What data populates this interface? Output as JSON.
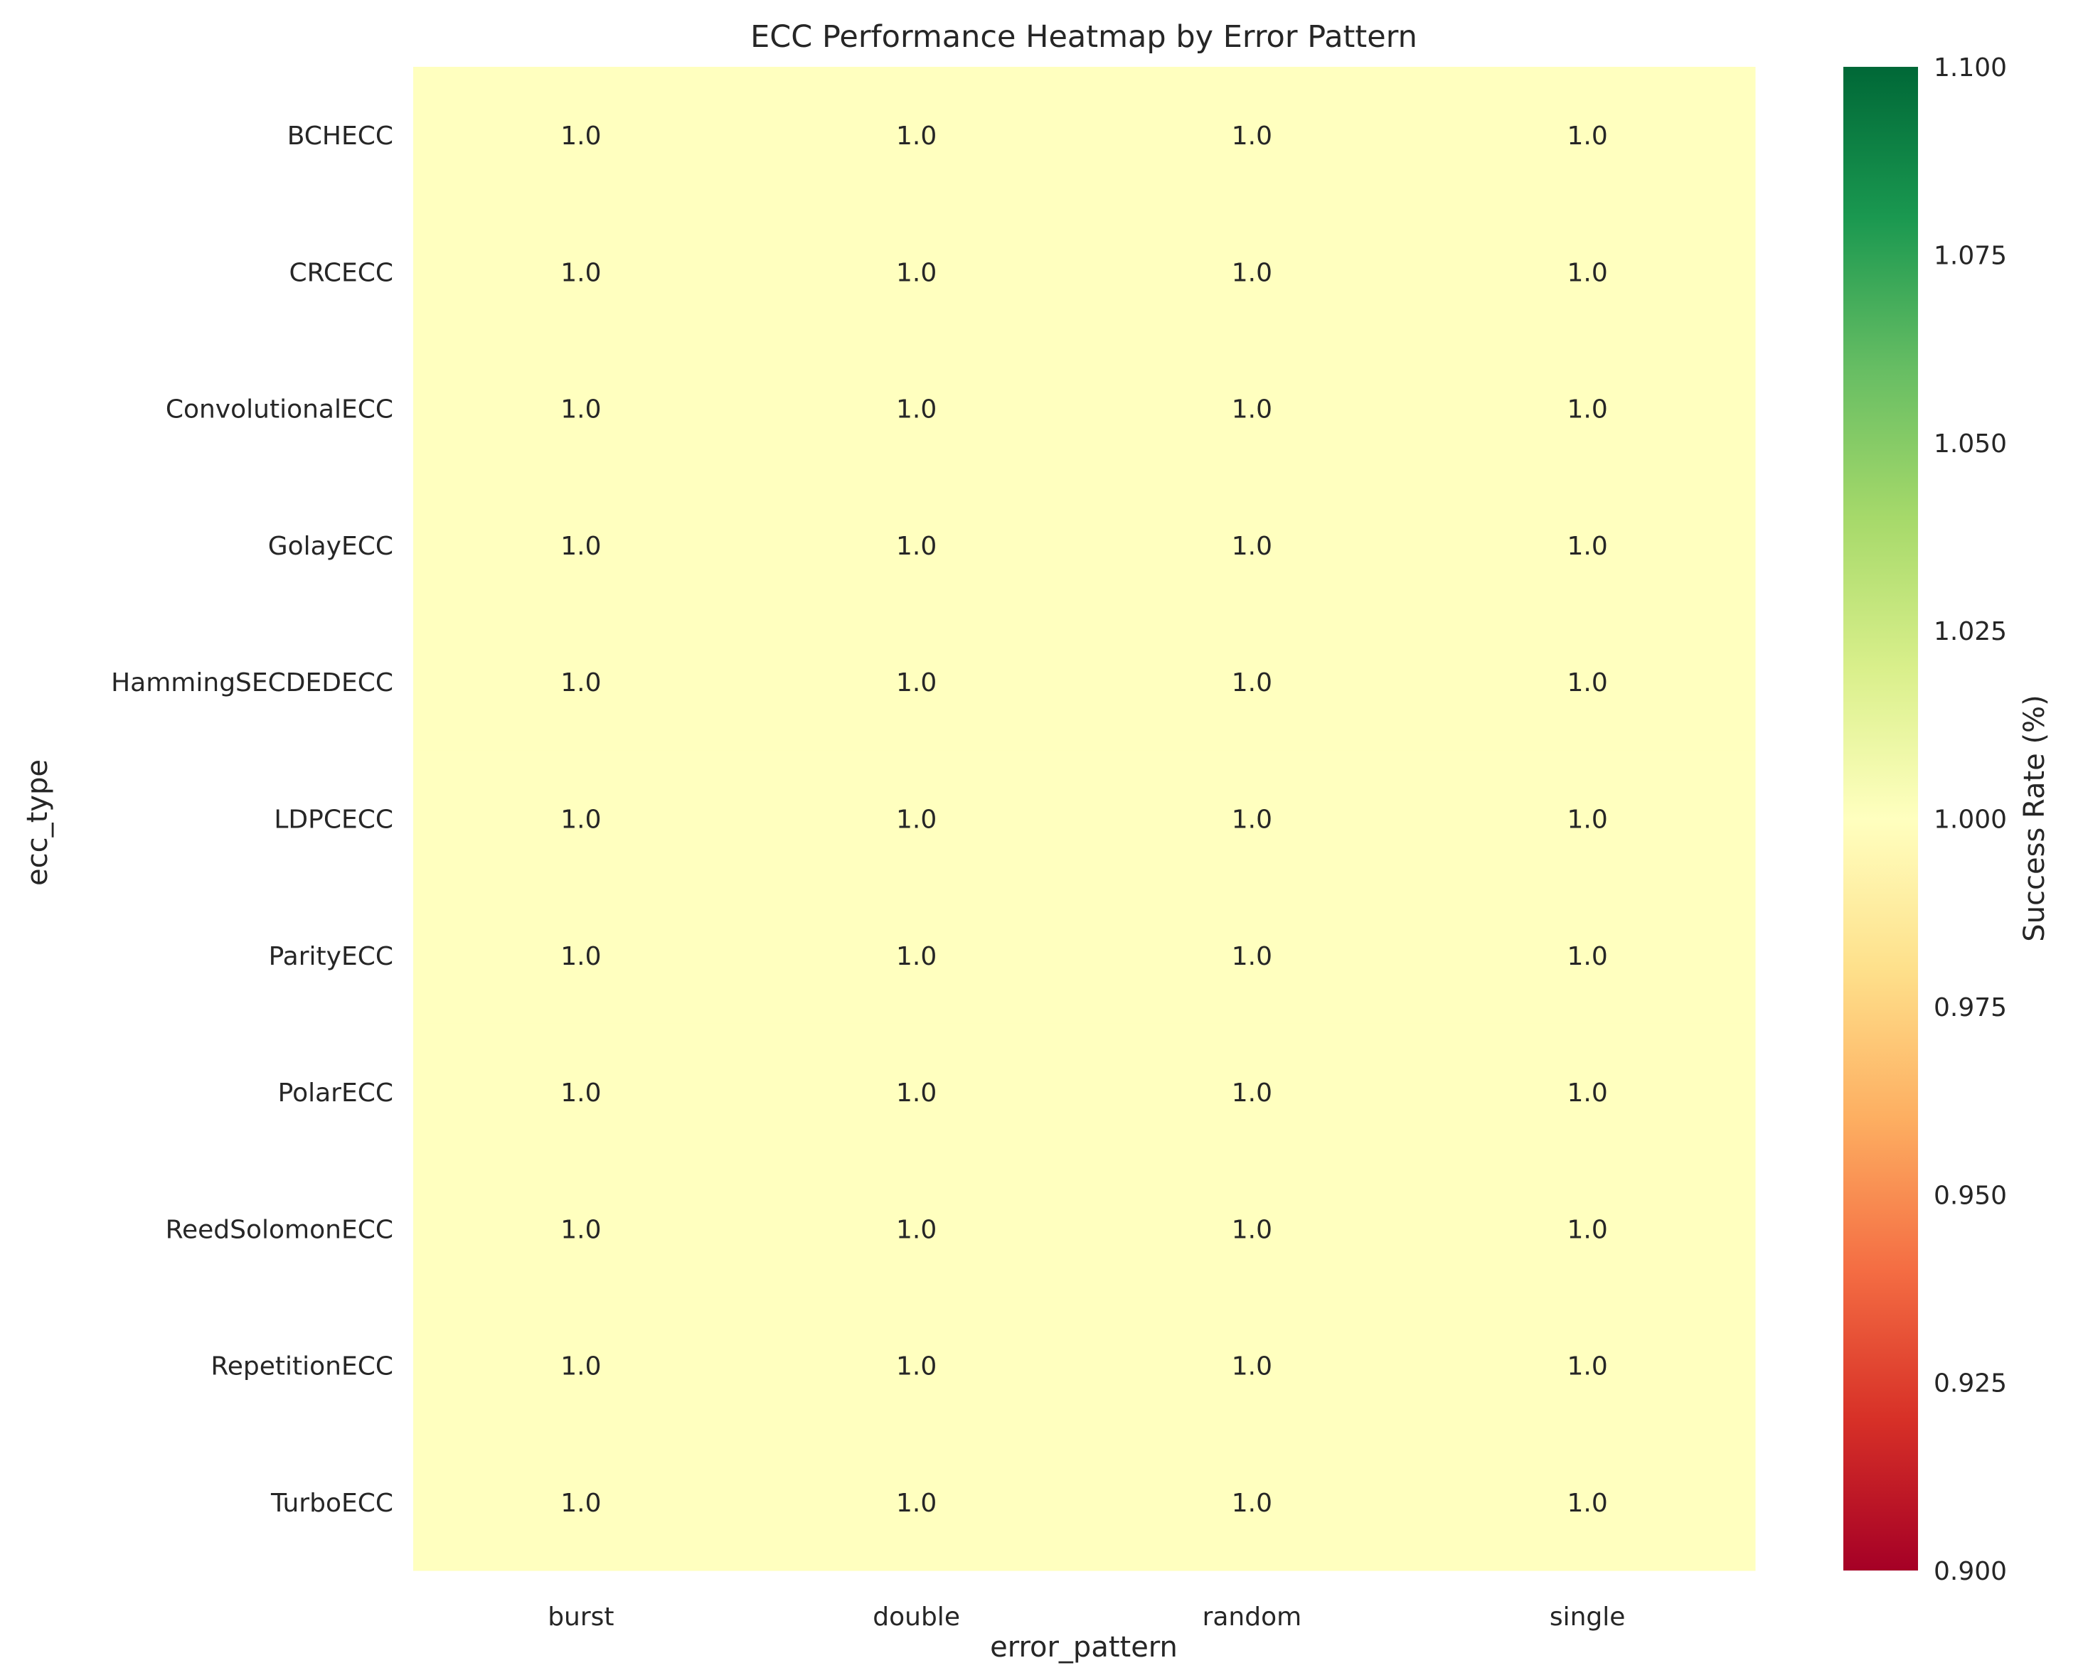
{
  "chart_data": {
    "type": "heatmap",
    "title": "ECC Performance Heatmap by Error Pattern",
    "xlabel": "error_pattern",
    "ylabel": "ecc_type",
    "x_categories": [
      "burst",
      "double",
      "random",
      "single"
    ],
    "y_categories": [
      "BCHECC",
      "CRCECC",
      "ConvolutionalECC",
      "GolayECC",
      "HammingSECDEDECC",
      "LDPCECC",
      "ParityECC",
      "PolarECC",
      "ReedSolomonECC",
      "RepetitionECC",
      "TurboECC"
    ],
    "values": [
      [
        1.0,
        1.0,
        1.0,
        1.0
      ],
      [
        1.0,
        1.0,
        1.0,
        1.0
      ],
      [
        1.0,
        1.0,
        1.0,
        1.0
      ],
      [
        1.0,
        1.0,
        1.0,
        1.0
      ],
      [
        1.0,
        1.0,
        1.0,
        1.0
      ],
      [
        1.0,
        1.0,
        1.0,
        1.0
      ],
      [
        1.0,
        1.0,
        1.0,
        1.0
      ],
      [
        1.0,
        1.0,
        1.0,
        1.0
      ],
      [
        1.0,
        1.0,
        1.0,
        1.0
      ],
      [
        1.0,
        1.0,
        1.0,
        1.0
      ],
      [
        1.0,
        1.0,
        1.0,
        1.0
      ]
    ],
    "annotation_format": "1.0",
    "colorbar": {
      "label": "Success Rate (%)",
      "colormap": "RdYlGn",
      "range": [
        0.9,
        1.1
      ],
      "ticks": [
        "0.900",
        "0.925",
        "0.950",
        "0.975",
        "1.000",
        "1.025",
        "1.050",
        "1.075",
        "1.100"
      ]
    },
    "grid": false
  }
}
